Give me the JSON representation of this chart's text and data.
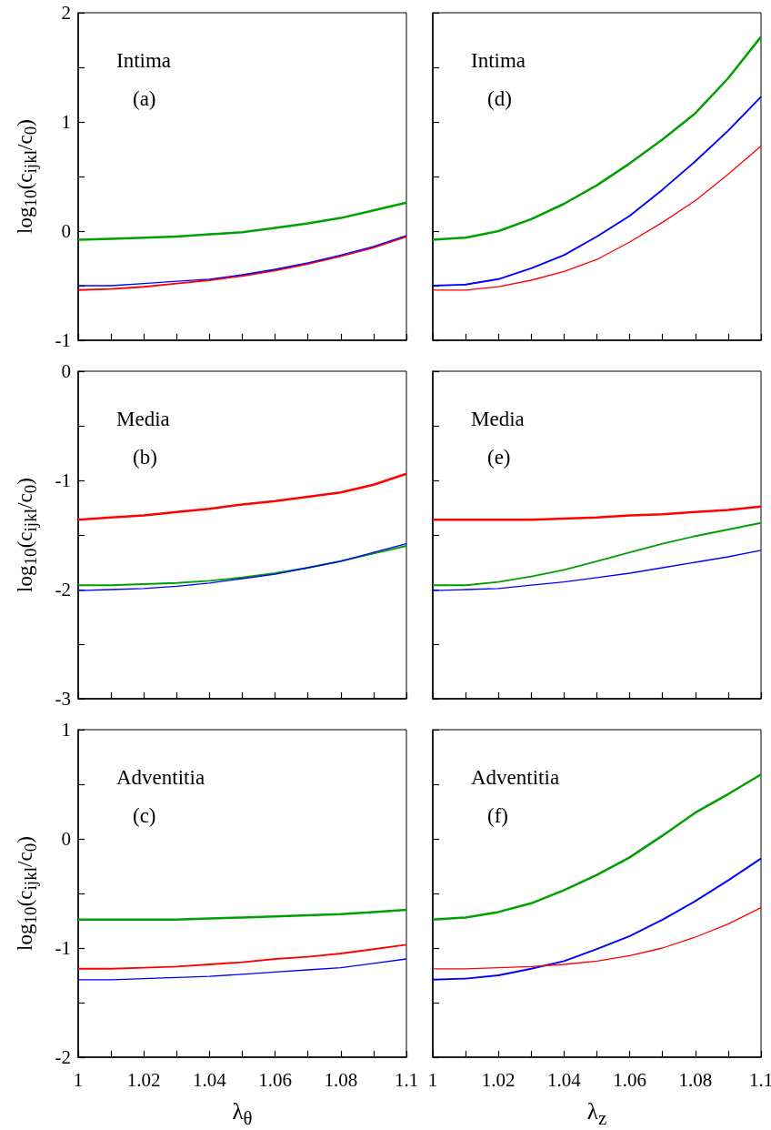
{
  "chart_data": [
    {
      "type": "line",
      "ylabel": "log$_{10}$(c$_{ijkl}$/c$_{0}$)",
      "annotations": [
        "Intima",
        "(a)"
      ],
      "xlim": [
        1,
        1.1
      ],
      "xticks": [
        1,
        {
          "value": 1.01,
          "label": null
        },
        1.02,
        {
          "value": 1.03,
          "label": null
        },
        1.04,
        {
          "value": 1.05,
          "label": null
        },
        1.06,
        {
          "value": 1.07,
          "label": null
        },
        1.08,
        {
          "value": 1.09,
          "label": null
        },
        1.1
      ],
      "ylim": [
        -1,
        2
      ],
      "yticks": [
        -1,
        {
          "value": -0.5,
          "label": null
        },
        0,
        {
          "value": 0.5,
          "label": null
        },
        1,
        {
          "value": 1.5,
          "label": null
        },
        2
      ],
      "tick_labels": "y",
      "grid": false,
      "x": [
        1,
        1.01,
        1.02,
        1.03,
        1.04,
        1.05,
        1.06,
        1.07,
        1.08,
        1.09,
        1.1
      ],
      "series": [
        {
          "color": "#00a000",
          "values": [
            -0.08,
            -0.07,
            -0.06,
            -0.05,
            -0.03,
            -0.01,
            0.03,
            0.07,
            0.12,
            0.19,
            0.26
          ]
        },
        {
          "color": "#ff0000",
          "values": [
            -0.54,
            -0.53,
            -0.51,
            -0.48,
            -0.45,
            -0.41,
            -0.36,
            -0.3,
            -0.23,
            -0.15,
            -0.05
          ]
        },
        {
          "color": "#0000ff",
          "values": [
            -0.5,
            -0.5,
            -0.48,
            -0.46,
            -0.44,
            -0.4,
            -0.35,
            -0.29,
            -0.22,
            -0.14,
            -0.04
          ]
        }
      ]
    },
    {
      "type": "line",
      "ylabel": "log$_{10}$(c$_{ijkl}$/c$_{0}$)",
      "annotations": [
        "Media",
        "(b)"
      ],
      "xlim": [
        1,
        1.1
      ],
      "xticks": [
        1,
        {
          "value": 1.01,
          "label": null
        },
        1.02,
        {
          "value": 1.03,
          "label": null
        },
        1.04,
        {
          "value": 1.05,
          "label": null
        },
        1.06,
        {
          "value": 1.07,
          "label": null
        },
        1.08,
        {
          "value": 1.09,
          "label": null
        },
        1.1
      ],
      "ylim": [
        -3,
        0
      ],
      "yticks": [
        -3,
        {
          "value": -2.5,
          "label": null
        },
        -2,
        {
          "value": -1.5,
          "label": null
        },
        -1,
        {
          "value": -0.5,
          "label": null
        },
        0
      ],
      "tick_labels": "y",
      "grid": false,
      "x": [
        1,
        1.01,
        1.02,
        1.03,
        1.04,
        1.05,
        1.06,
        1.07,
        1.08,
        1.09,
        1.1
      ],
      "series": [
        {
          "color": "#ff0000",
          "values": [
            -1.36,
            -1.34,
            -1.32,
            -1.29,
            -1.26,
            -1.22,
            -1.19,
            -1.15,
            -1.11,
            -1.04,
            -0.94
          ]
        },
        {
          "color": "#00a000",
          "values": [
            -1.96,
            -1.96,
            -1.95,
            -1.94,
            -1.92,
            -1.89,
            -1.85,
            -1.8,
            -1.74,
            -1.67,
            -1.6
          ]
        },
        {
          "color": "#0000ff",
          "values": [
            -2.01,
            -2.0,
            -1.99,
            -1.97,
            -1.94,
            -1.9,
            -1.86,
            -1.8,
            -1.74,
            -1.66,
            -1.58
          ]
        }
      ]
    },
    {
      "type": "line",
      "xlabel": "λ$_{θ}$",
      "ylabel": "log$_{10}$(c$_{ijkl}$/c$_{0}$)",
      "annotations": [
        "Adventitia",
        "(c)"
      ],
      "xlim": [
        1,
        1.1
      ],
      "xticks": [
        1,
        {
          "value": 1.01,
          "label": null
        },
        1.02,
        {
          "value": 1.03,
          "label": null
        },
        1.04,
        {
          "value": 1.05,
          "label": null
        },
        1.06,
        {
          "value": 1.07,
          "label": null
        },
        1.08,
        {
          "value": 1.09,
          "label": null
        },
        1.1
      ],
      "ylim": [
        -2,
        1
      ],
      "yticks": [
        -2,
        {
          "value": -1.5,
          "label": null
        },
        -1,
        {
          "value": -0.5,
          "label": null
        },
        0,
        {
          "value": 0.5,
          "label": null
        },
        1
      ],
      "grid": false,
      "x": [
        1,
        1.01,
        1.02,
        1.03,
        1.04,
        1.05,
        1.06,
        1.07,
        1.08,
        1.09,
        1.1
      ],
      "series": [
        {
          "color": "#00a000",
          "values": [
            -0.74,
            -0.74,
            -0.74,
            -0.74,
            -0.73,
            -0.72,
            -0.71,
            -0.7,
            -0.69,
            -0.67,
            -0.65
          ]
        },
        {
          "color": "#ff0000",
          "values": [
            -1.19,
            -1.19,
            -1.18,
            -1.17,
            -1.15,
            -1.13,
            -1.1,
            -1.08,
            -1.05,
            -1.01,
            -0.97
          ]
        },
        {
          "color": "#0000ff",
          "values": [
            -1.29,
            -1.29,
            -1.28,
            -1.27,
            -1.26,
            -1.24,
            -1.22,
            -1.2,
            -1.18,
            -1.14,
            -1.1
          ]
        }
      ]
    },
    {
      "type": "line",
      "annotations": [
        "Intima",
        "(d)"
      ],
      "xlim": [
        1,
        1.1
      ],
      "xticks": [
        1,
        {
          "value": 1.01,
          "label": null
        },
        1.02,
        {
          "value": 1.03,
          "label": null
        },
        1.04,
        {
          "value": 1.05,
          "label": null
        },
        1.06,
        {
          "value": 1.07,
          "label": null
        },
        1.08,
        {
          "value": 1.09,
          "label": null
        },
        1.1
      ],
      "ylim": [
        -1,
        2
      ],
      "yticks": [
        -1,
        {
          "value": -0.5,
          "label": null
        },
        0,
        {
          "value": 0.5,
          "label": null
        },
        1,
        {
          "value": 1.5,
          "label": null
        },
        2
      ],
      "tick_labels": false,
      "grid": false,
      "x": [
        1,
        1.01,
        1.02,
        1.03,
        1.04,
        1.05,
        1.06,
        1.07,
        1.08,
        1.09,
        1.1
      ],
      "series": [
        {
          "color": "#00a000",
          "values": [
            -0.08,
            -0.06,
            0,
            0.11,
            0.25,
            0.42,
            0.62,
            0.84,
            1.08,
            1.4,
            1.78
          ]
        },
        {
          "color": "#0000ff",
          "values": [
            -0.5,
            -0.49,
            -0.44,
            -0.34,
            -0.22,
            -0.05,
            0.14,
            0.38,
            0.64,
            0.92,
            1.23
          ]
        },
        {
          "color": "#ff0000",
          "values": [
            -0.54,
            -0.54,
            -0.51,
            -0.45,
            -0.37,
            -0.26,
            -0.1,
            0.08,
            0.28,
            0.52,
            0.78
          ]
        }
      ]
    },
    {
      "type": "line",
      "annotations": [
        "Media",
        "(e)"
      ],
      "xlim": [
        1,
        1.1
      ],
      "xticks": [
        1,
        {
          "value": 1.01,
          "label": null
        },
        1.02,
        {
          "value": 1.03,
          "label": null
        },
        1.04,
        {
          "value": 1.05,
          "label": null
        },
        1.06,
        {
          "value": 1.07,
          "label": null
        },
        1.08,
        {
          "value": 1.09,
          "label": null
        },
        1.1
      ],
      "ylim": [
        -3,
        0
      ],
      "yticks": [
        -3,
        {
          "value": -2.5,
          "label": null
        },
        -2,
        {
          "value": -1.5,
          "label": null
        },
        -1,
        {
          "value": -0.5,
          "label": null
        },
        0
      ],
      "tick_labels": false,
      "grid": false,
      "x": [
        1,
        1.01,
        1.02,
        1.03,
        1.04,
        1.05,
        1.06,
        1.07,
        1.08,
        1.09,
        1.1
      ],
      "series": [
        {
          "color": "#ff0000",
          "values": [
            -1.36,
            -1.36,
            -1.36,
            -1.36,
            -1.35,
            -1.34,
            -1.32,
            -1.31,
            -1.29,
            -1.27,
            -1.24
          ]
        },
        {
          "color": "#00a000",
          "values": [
            -1.96,
            -1.96,
            -1.93,
            -1.88,
            -1.82,
            -1.74,
            -1.66,
            -1.58,
            -1.51,
            -1.45,
            -1.39
          ]
        },
        {
          "color": "#0000ff",
          "values": [
            -2.01,
            -2.0,
            -1.99,
            -1.96,
            -1.93,
            -1.89,
            -1.85,
            -1.8,
            -1.75,
            -1.7,
            -1.64
          ]
        }
      ]
    },
    {
      "type": "line",
      "xlabel": "λ$_{z}$",
      "annotations": [
        "Adventitia",
        "(f)"
      ],
      "xlim": [
        1,
        1.1
      ],
      "xticks": [
        1,
        {
          "value": 1.01,
          "label": null
        },
        1.02,
        {
          "value": 1.03,
          "label": null
        },
        1.04,
        {
          "value": 1.05,
          "label": null
        },
        1.06,
        {
          "value": 1.07,
          "label": null
        },
        1.08,
        {
          "value": 1.09,
          "label": null
        },
        1.1
      ],
      "ylim": [
        -2,
        1
      ],
      "yticks": [
        -2,
        {
          "value": -1.5,
          "label": null
        },
        -1,
        {
          "value": -0.5,
          "label": null
        },
        0,
        {
          "value": 0.5,
          "label": null
        },
        1
      ],
      "tick_labels": "x",
      "grid": false,
      "x": [
        1,
        1.01,
        1.02,
        1.03,
        1.04,
        1.05,
        1.06,
        1.07,
        1.08,
        1.09,
        1.1
      ],
      "series": [
        {
          "color": "#00a000",
          "values": [
            -0.74,
            -0.72,
            -0.67,
            -0.59,
            -0.47,
            -0.33,
            -0.17,
            0.03,
            0.24,
            0.41,
            0.59
          ]
        },
        {
          "color": "#0000ff",
          "values": [
            -1.29,
            -1.28,
            -1.25,
            -1.19,
            -1.12,
            -1.01,
            -0.89,
            -0.74,
            -0.57,
            -0.38,
            -0.18
          ]
        },
        {
          "color": "#ff0000",
          "values": [
            -1.19,
            -1.19,
            -1.18,
            -1.17,
            -1.15,
            -1.12,
            -1.07,
            -1.0,
            -0.9,
            -0.78,
            -0.63
          ]
        }
      ]
    }
  ]
}
